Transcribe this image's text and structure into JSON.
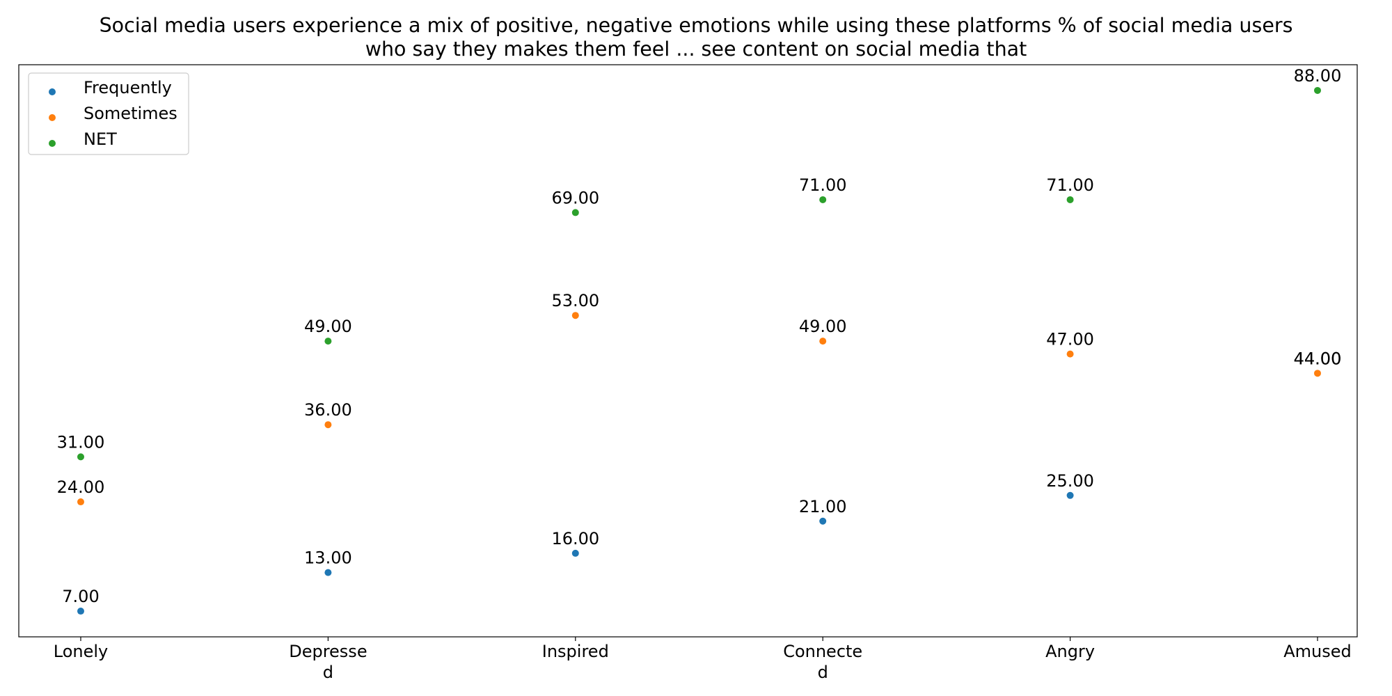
{
  "title": {
    "line1": "Social media users experience a mix of positive, negative emotions while using these platforms % of social media users",
    "line2": "who say they makes them feel ... see content on social media that"
  },
  "colors": {
    "Frequently": "#1f77b4",
    "Sometimes": "#ff7f0e",
    "NET": "#2ca02c"
  },
  "chart_data": {
    "type": "scatter",
    "title": "Social media users experience a mix of positive, negative emotions while using these platforms % of social media users who say they makes them feel ... see content on social media that",
    "categories": [
      "Lonely",
      "Depressed",
      "Inspired",
      "Connected",
      "Angry",
      "Amused"
    ],
    "tick_labels": [
      [
        "Lonely"
      ],
      [
        "Depresse",
        "d"
      ],
      [
        "Inspired"
      ],
      [
        "Connecte",
        "d"
      ],
      [
        "Angry"
      ],
      [
        "Amused"
      ]
    ],
    "series": [
      {
        "name": "Frequently",
        "values": [
          7,
          13,
          16,
          21,
          25,
          null
        ]
      },
      {
        "name": "Sometimes",
        "values": [
          24,
          36,
          53,
          49,
          47,
          44
        ]
      },
      {
        "name": "NET",
        "values": [
          31,
          49,
          69,
          71,
          71,
          88
        ]
      }
    ],
    "extra_labels": [
      {
        "category": "Amused",
        "text": "44.00"
      }
    ],
    "label_format": "2 decimals",
    "ylim": [
      3,
      92
    ],
    "yticks_shown": false,
    "grid": false,
    "legend": "top-left",
    "xlabel": "",
    "ylabel": ""
  }
}
